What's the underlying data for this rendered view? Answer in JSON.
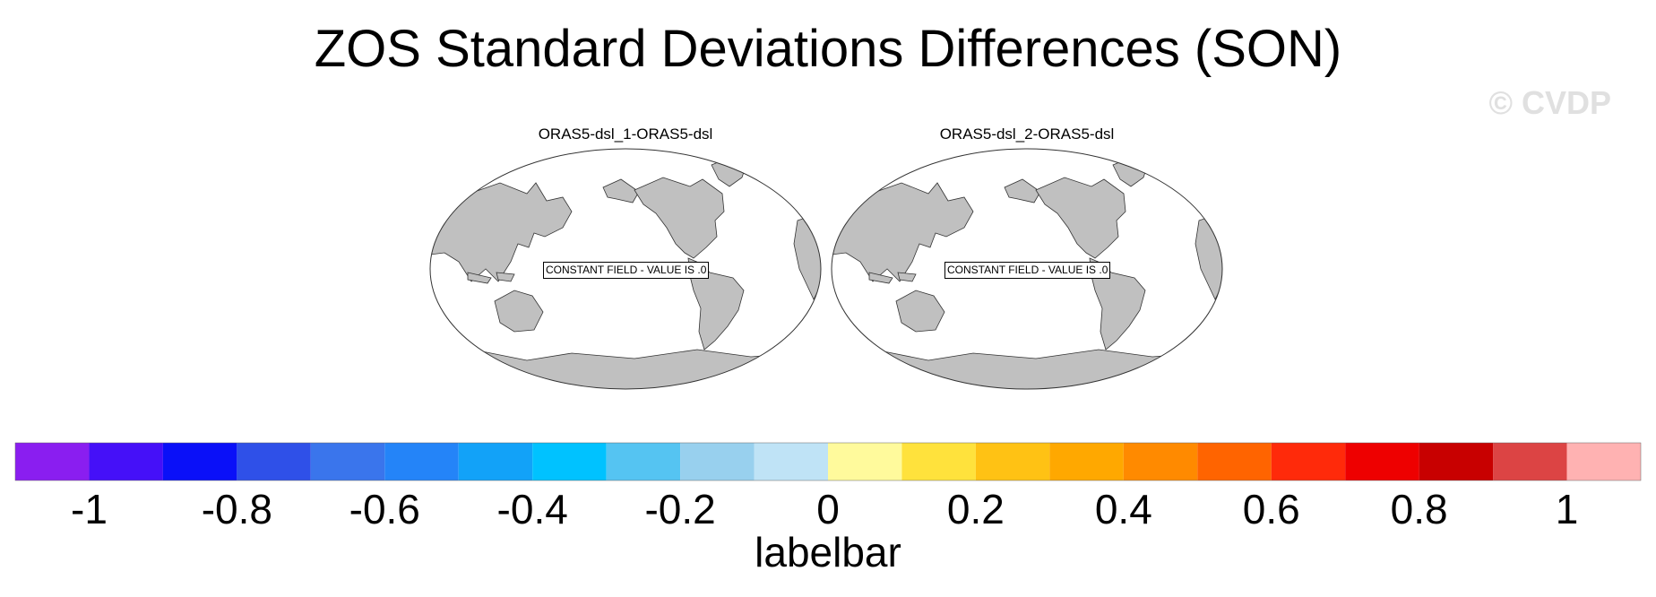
{
  "title": "ZOS Standard Deviations Differences (SON)",
  "watermark": "© CVDP",
  "panels": [
    {
      "title": "ORAS5-dsl_1-ORAS5-dsl",
      "message": "CONSTANT FIELD - VALUE IS .0"
    },
    {
      "title": "ORAS5-dsl_2-ORAS5-dsl",
      "message": "CONSTANT FIELD - VALUE IS .0"
    }
  ],
  "colorbar": {
    "label": "labelbar",
    "colors": [
      "#8a1ef0",
      "#4510f8",
      "#0a10f8",
      "#2f50e8",
      "#3a75ec",
      "#2484f8",
      "#12a2f8",
      "#00c2ff",
      "#55c4f2",
      "#98d0ee",
      "#bfe3f6",
      "#fffa9c",
      "#ffe23c",
      "#ffc214",
      "#ffa800",
      "#ff8a00",
      "#ff6400",
      "#ff2a0a",
      "#ee0000",
      "#c80000",
      "#dc4444",
      "#ffb2b2"
    ],
    "bounds": [
      -1.1,
      -1.0,
      -0.9,
      -0.8,
      -0.7,
      -0.6,
      -0.5,
      -0.4,
      -0.3,
      -0.2,
      -0.1,
      0.0,
      0.1,
      0.2,
      0.3,
      0.4,
      0.5,
      0.6,
      0.7,
      0.8,
      0.9,
      1.0,
      1.1
    ],
    "tick_values": [
      -1,
      -0.8,
      -0.6,
      -0.4,
      -0.2,
      0,
      0.2,
      0.4,
      0.6,
      0.8,
      1
    ],
    "tick_labels": [
      "-1",
      "-0.8",
      "-0.6",
      "-0.4",
      "-0.2",
      "0",
      "0.2",
      "0.4",
      "0.6",
      "0.8",
      "1"
    ]
  },
  "land_color": "#c0c0c0"
}
